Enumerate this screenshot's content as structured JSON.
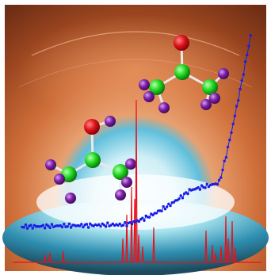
{
  "figure": {
    "frame_color": "#ffffff",
    "background_top": "#a0441c",
    "background_glow": "#e98a52",
    "floor_light": "#bfeff5",
    "floor_blue": "#2d8fb6",
    "floor_dark": "#1f4f61"
  },
  "molecules": [
    {
      "name": "upper-molecule",
      "atoms": [
        {
          "element": "O",
          "color": "#e0121a"
        },
        {
          "element": "C",
          "color": "#1fd81f"
        },
        {
          "element": "C",
          "color": "#1fd81f"
        },
        {
          "element": "C",
          "color": "#1fd81f"
        },
        {
          "element": "H",
          "color": "#7b1ea8"
        },
        {
          "element": "H",
          "color": "#7b1ea8"
        },
        {
          "element": "H",
          "color": "#7b1ea8"
        },
        {
          "element": "H",
          "color": "#7b1ea8"
        },
        {
          "element": "H",
          "color": "#7b1ea8"
        },
        {
          "element": "H",
          "color": "#7b1ea8"
        }
      ]
    },
    {
      "name": "lower-molecule",
      "atoms": [
        {
          "element": "O",
          "color": "#e0121a"
        },
        {
          "element": "C",
          "color": "#1fd81f"
        },
        {
          "element": "C",
          "color": "#1fd81f"
        },
        {
          "element": "C",
          "color": "#1fd81f"
        },
        {
          "element": "H",
          "color": "#7b1ea8"
        },
        {
          "element": "H",
          "color": "#7b1ea8"
        },
        {
          "element": "H",
          "color": "#7b1ea8"
        },
        {
          "element": "H",
          "color": "#7b1ea8"
        },
        {
          "element": "H",
          "color": "#7b1ea8"
        },
        {
          "element": "H",
          "color": "#7b1ea8"
        },
        {
          "element": "H",
          "color": "#7b1ea8"
        }
      ]
    }
  ],
  "traces": [
    {
      "name": "blue-dotted-trace",
      "color": "#1a1ee8"
    },
    {
      "name": "red-spectrum-trace",
      "color": "#e8121a"
    }
  ]
}
